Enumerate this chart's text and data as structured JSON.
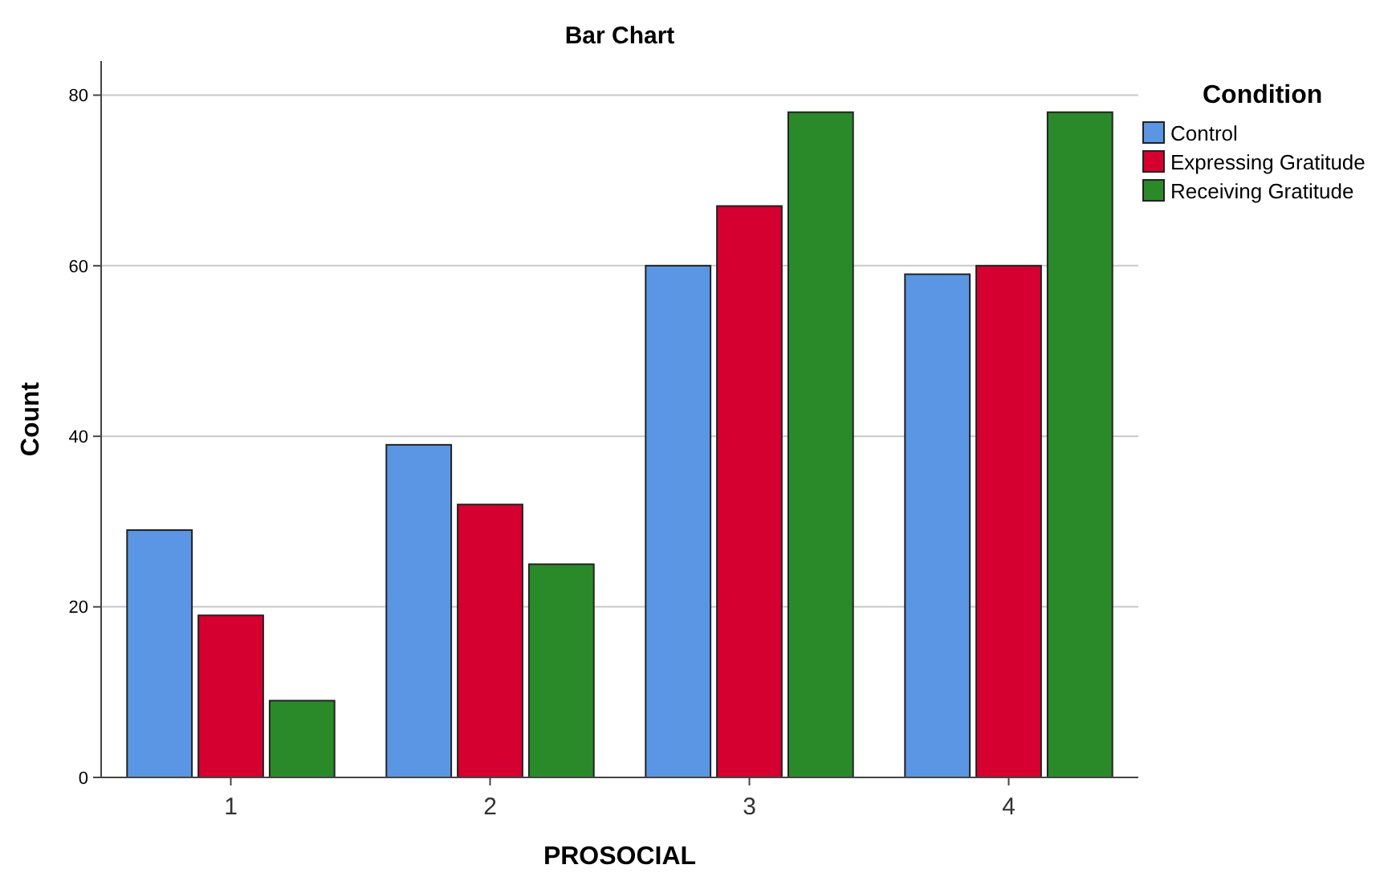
{
  "chart_data": {
    "type": "bar",
    "title": "Bar Chart",
    "xlabel": "PROSOCIAL",
    "ylabel": "Count",
    "legend_title": "Condition",
    "categories": [
      "1",
      "2",
      "3",
      "4"
    ],
    "series": [
      {
        "name": "Control",
        "color": "#5a96e3",
        "values": [
          29,
          39,
          60,
          59
        ]
      },
      {
        "name": "Expressing Gratitude",
        "color": "#d5002f",
        "values": [
          19,
          32,
          67,
          60
        ]
      },
      {
        "name": "Receiving Gratitude",
        "color": "#2a8a2a",
        "values": [
          9,
          25,
          78,
          78
        ]
      }
    ],
    "ylim": [
      0,
      84
    ],
    "yticks": [
      0,
      20,
      40,
      60,
      80
    ],
    "grid": "y",
    "legend": "top right"
  }
}
